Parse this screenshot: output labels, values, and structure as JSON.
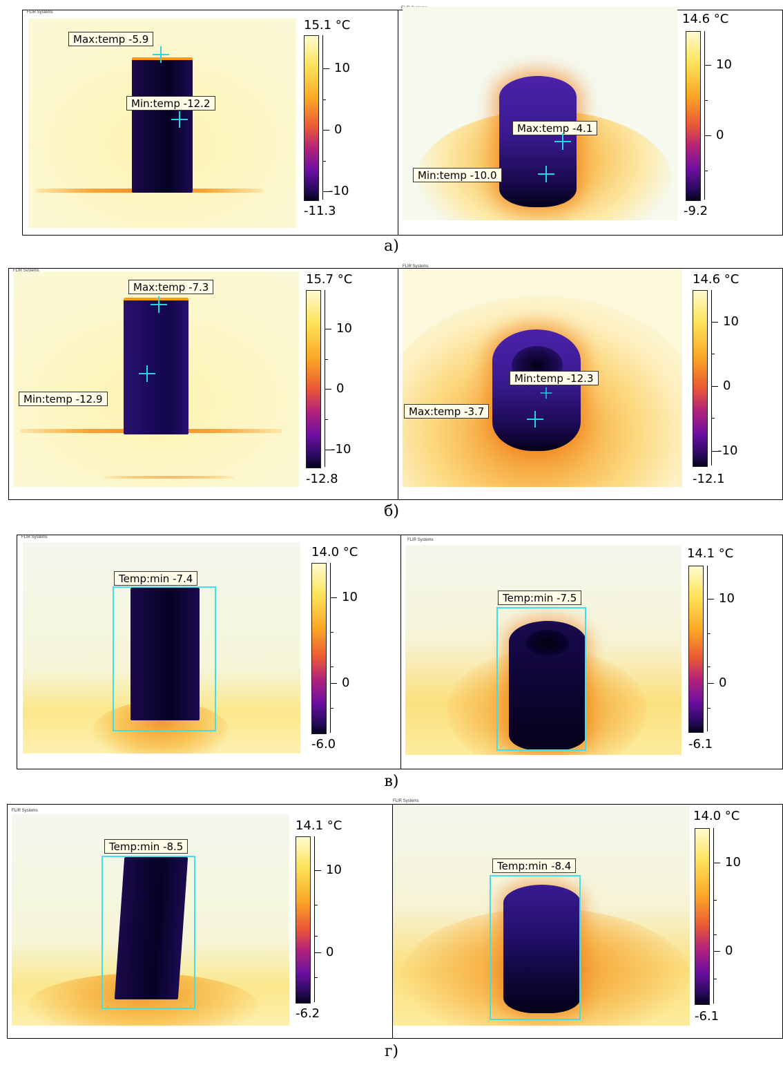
{
  "brand": "FLIR Systems",
  "panels": [
    {
      "caption": "а)",
      "left": {
        "scale_max": "15.1 °C",
        "scale_min": "-11.3",
        "ticks": [
          "10",
          "0",
          "-10"
        ],
        "labels": [
          "Max:temp -5.9",
          "Min:temp -12.2"
        ]
      },
      "right": {
        "scale_max": "14.6 °C",
        "scale_min": "-9.2",
        "ticks": [
          "10",
          "0"
        ],
        "labels": [
          "Max:temp -4.1",
          "Min:temp -10.0"
        ]
      }
    },
    {
      "caption": "б)",
      "left": {
        "scale_max": "15.7 °C",
        "scale_min": "-12.8",
        "ticks": [
          "10",
          "0",
          "-10"
        ],
        "labels": [
          "Max:temp -7.3",
          "Min:temp -12.9"
        ]
      },
      "right": {
        "scale_max": "14.6 °C",
        "scale_min": "-12.1",
        "ticks": [
          "10",
          "0",
          "-10"
        ],
        "labels": [
          "Min:temp -12.3",
          "Max:temp -3.7"
        ]
      }
    },
    {
      "caption": "в)",
      "left": {
        "scale_max": "14.0 °C",
        "scale_min": "-6.0",
        "ticks": [
          "10",
          "0"
        ],
        "labels": [
          "Temp:min -7.4"
        ]
      },
      "right": {
        "scale_max": "14.1 °C",
        "scale_min": "-6.1",
        "ticks": [
          "10",
          "0"
        ],
        "labels": [
          "Temp:min -7.5"
        ]
      }
    },
    {
      "caption": "г)",
      "left": {
        "scale_max": "14.1 °C",
        "scale_min": "-6.2",
        "ticks": [
          "10",
          "0"
        ],
        "labels": [
          "Temp:min -8.5"
        ]
      },
      "right": {
        "scale_max": "14.0 °C",
        "scale_min": "-6.1",
        "ticks": [
          "10",
          "0"
        ],
        "labels": [
          "Temp:min -8.4"
        ]
      }
    }
  ]
}
